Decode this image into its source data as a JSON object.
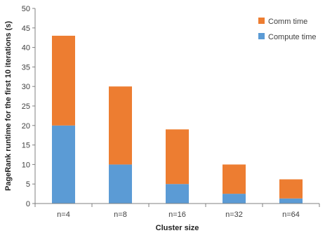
{
  "chart_data": {
    "type": "bar",
    "stacked": true,
    "title": "",
    "xlabel": "Cluster size",
    "ylabel": "PageRank runtime for the first 10 iterations (s)",
    "categories": [
      "n=4",
      "n=8",
      "n=16",
      "n=32",
      "n=64"
    ],
    "series": [
      {
        "name": "Compute time",
        "values": [
          20,
          10,
          5,
          2.5,
          1.3
        ],
        "color": "#5B9BD5"
      },
      {
        "name": "Comm time",
        "values": [
          23,
          20,
          14,
          7.5,
          4.9
        ],
        "color": "#ED7D31"
      }
    ],
    "ylim": [
      0,
      50
    ],
    "yticks": [
      0,
      5,
      10,
      15,
      20,
      25,
      30,
      35,
      40,
      45,
      50
    ],
    "grid": false,
    "legend": {
      "placement": "top-right",
      "order": [
        "Comm time",
        "Compute time"
      ]
    }
  }
}
